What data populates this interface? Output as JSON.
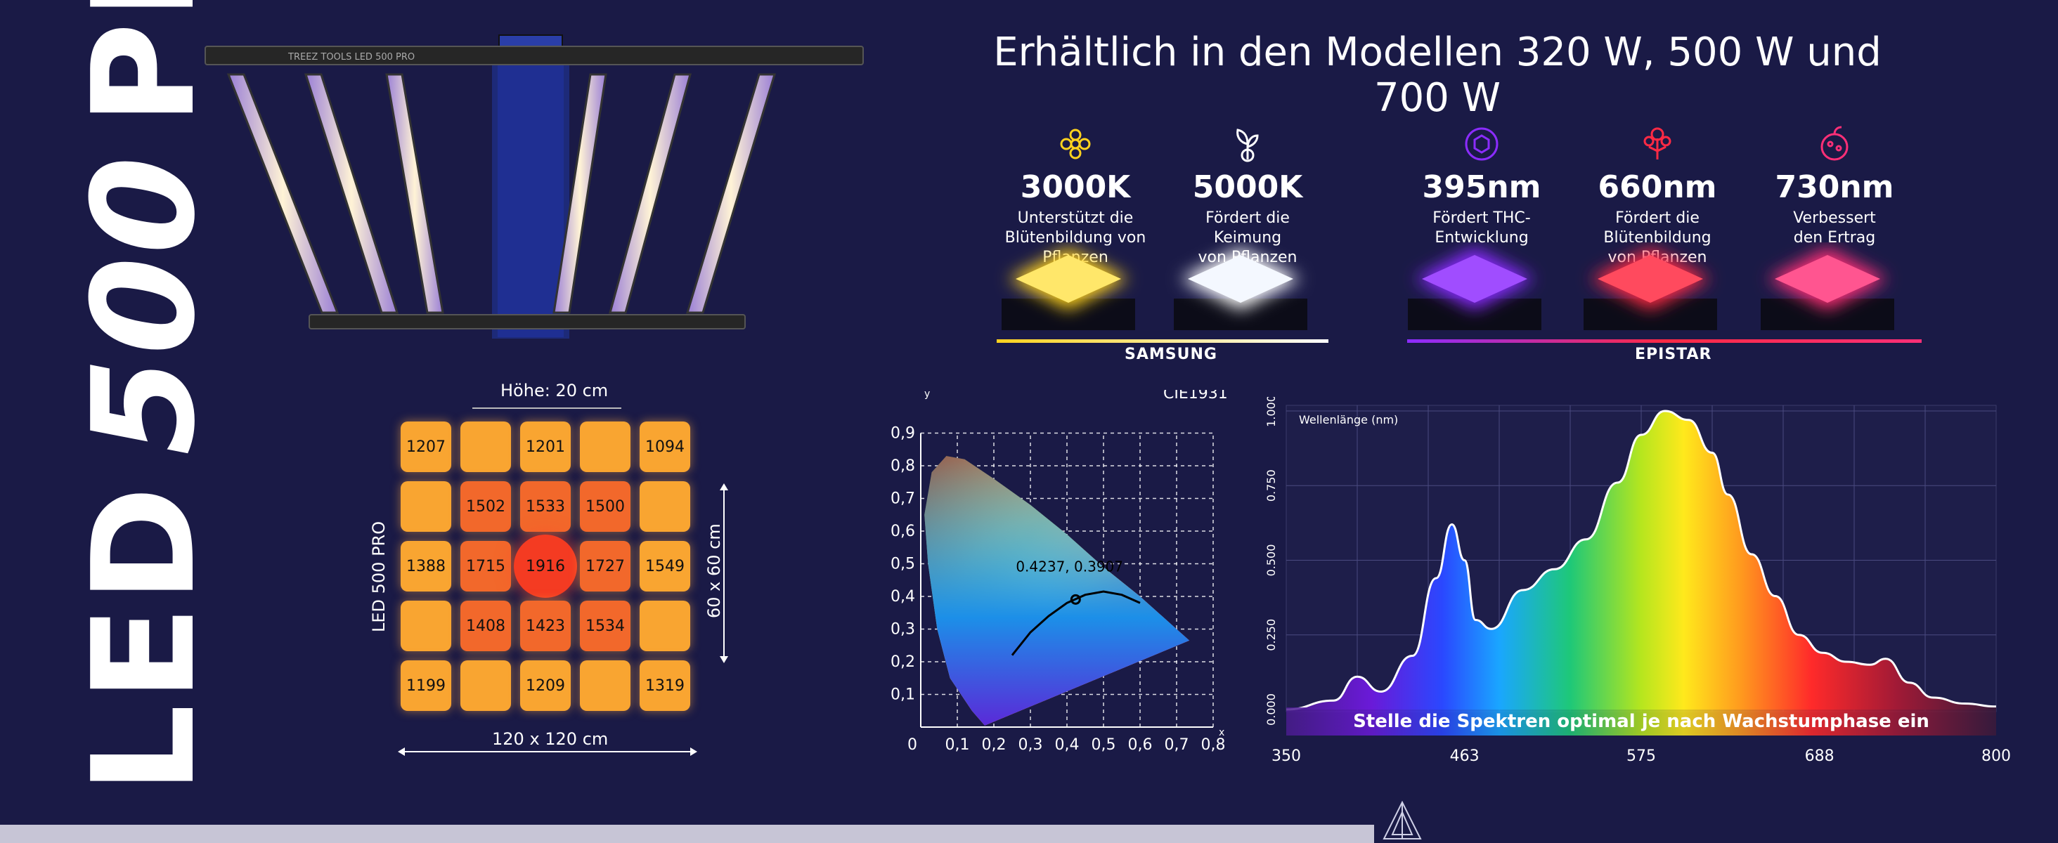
{
  "product": {
    "title_left": "LED",
    "title_num": "500",
    "title_right": "PRO",
    "fixture_label": "TREEZ TOOLS LED 500 PRO"
  },
  "headline": "Erhältlich in den Modellen 320 W, 500 W und 700 W",
  "colors": {
    "background": "#1a1a46",
    "warm": "#ffd21e",
    "cool": "#f4f8ff",
    "uv": "#8b2cff",
    "red": "#ff2a44",
    "far_red": "#ff2f77"
  },
  "chips": [
    {
      "value": "3000K",
      "desc1": "Unterstützt die",
      "desc2": "Blütenbildung von Pflanzen",
      "icon": "flower-icon"
    },
    {
      "value": "5000K",
      "desc1": "Fördert die Keimung",
      "desc2": "von Pflanzen",
      "icon": "sprout-icon"
    },
    {
      "value": "395nm",
      "desc1": "Fördert THC-",
      "desc2": "Entwicklung",
      "icon": "molecule-icon"
    },
    {
      "value": "660nm",
      "desc1": "Fördert die Blütenbildung",
      "desc2": "von Pflanzen",
      "icon": "bloom-icon"
    },
    {
      "value": "730nm",
      "desc1": "Verbessert",
      "desc2": "den Ertrag",
      "icon": "fruit-icon"
    }
  ],
  "brands": {
    "left": "SAMSUNG",
    "right": "EPISTAR"
  },
  "grid": {
    "height_label": "Höhe: 20 cm",
    "side_label": "LED 500 PRO",
    "size_label": "60 x 60 cm",
    "footprint_label": "120 x 120 cm",
    "rows": [
      [
        "1207",
        "",
        "1201",
        "",
        "1094"
      ],
      [
        "",
        "1502",
        "1533",
        "1500",
        ""
      ],
      [
        "1388",
        "1715",
        "1916",
        "1727",
        "1549"
      ],
      [
        "",
        "1408",
        "1423",
        "1534",
        ""
      ],
      [
        "1199",
        "",
        "1209",
        "",
        "1319"
      ]
    ]
  },
  "cie": {
    "title": "CIE1931",
    "point_label": "0.4237, 0.3907",
    "point": [
      0.4237,
      0.3907
    ],
    "y_axis": "y",
    "x_axis": "x",
    "x_ticks": [
      "0",
      "0,1",
      "0,2",
      "0,3",
      "0,4",
      "0,5",
      "0,6",
      "0,7",
      "0,8"
    ],
    "y_ticks": [
      "0,1",
      "0,2",
      "0,3",
      "0,4",
      "0,5",
      "0,6",
      "0,7",
      "0,8",
      "0,9"
    ]
  },
  "chart_data": {
    "type": "area",
    "title": "Wellenlänge (nm)",
    "subtitle": "Stelle die Spektren optimal je nach Wachstumphase ein",
    "x_ticks": [
      "350",
      "463",
      "575",
      "688",
      "800"
    ],
    "y_ticks": [
      "0.000",
      "0.250",
      "0.500",
      "0.750",
      "1.000"
    ],
    "xlim": [
      350,
      800
    ],
    "ylim": [
      0,
      1
    ],
    "x": [
      350,
      380,
      395,
      410,
      430,
      445,
      455,
      463,
      470,
      480,
      500,
      520,
      540,
      560,
      575,
      590,
      605,
      620,
      630,
      645,
      660,
      675,
      690,
      705,
      720,
      730,
      745,
      760,
      780,
      800
    ],
    "y": [
      0.0,
      0.03,
      0.11,
      0.06,
      0.18,
      0.44,
      0.62,
      0.5,
      0.3,
      0.27,
      0.4,
      0.47,
      0.57,
      0.76,
      0.92,
      1.0,
      0.97,
      0.86,
      0.72,
      0.52,
      0.38,
      0.25,
      0.19,
      0.16,
      0.15,
      0.17,
      0.09,
      0.04,
      0.02,
      0.01
    ]
  }
}
